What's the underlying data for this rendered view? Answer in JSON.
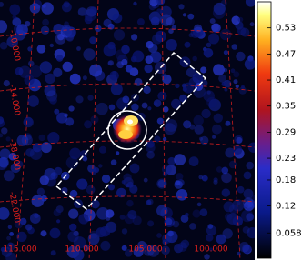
{
  "image": {
    "dec_labels": [
      "-10.000",
      "-14.000",
      "-18.000",
      "-22.000"
    ],
    "ra_labels": [
      "115.000",
      "110.000",
      "105.000",
      "100.000"
    ]
  },
  "colorbar": {
    "lim": [
      0,
      0.59
    ],
    "ticks": [
      0.058,
      0.12,
      0.18,
      0.23,
      0.29,
      0.35,
      0.41,
      0.47,
      0.53
    ]
  }
}
